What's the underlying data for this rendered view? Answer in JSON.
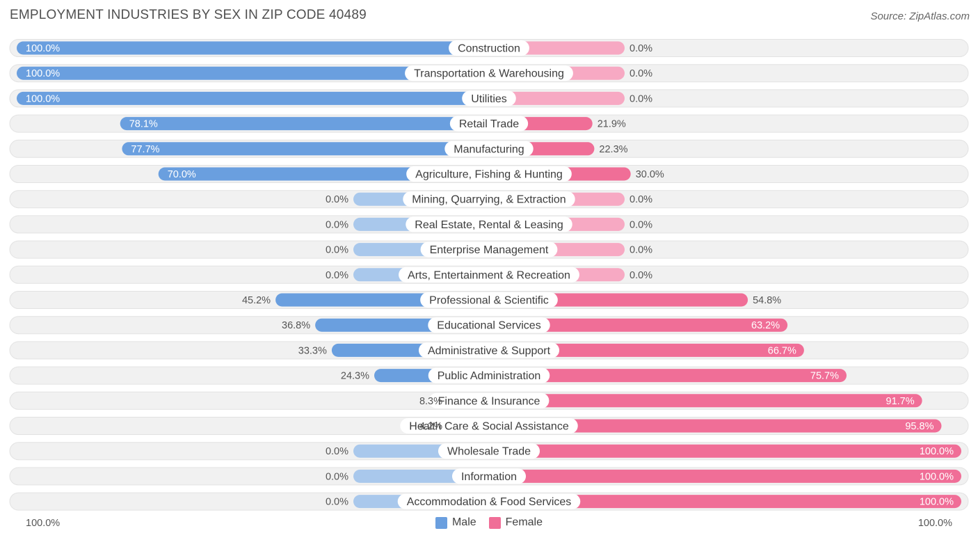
{
  "title": "EMPLOYMENT INDUSTRIES BY SEX IN ZIP CODE 40489",
  "source": "Source: ZipAtlas.com",
  "colors": {
    "male": "#6a9fdf",
    "male_light": "#a9c8ec",
    "female": "#f06e97",
    "female_light": "#f7a9c3",
    "track": "#f1f1f1"
  },
  "chart_data": {
    "type": "bar",
    "orientation": "horizontal-diverging",
    "title": "EMPLOYMENT INDUSTRIES BY SEX IN ZIP CODE 40489",
    "axis": {
      "left_label": "100.0%",
      "right_label": "100.0%",
      "xlim": [
        -100,
        100
      ]
    },
    "legend": [
      {
        "name": "Male",
        "color": "#6a9fdf"
      },
      {
        "name": "Female",
        "color": "#f06e97"
      }
    ],
    "legend_position": "bottom",
    "categories": [
      "Construction",
      "Transportation & Warehousing",
      "Utilities",
      "Retail Trade",
      "Manufacturing",
      "Agriculture, Fishing & Hunting",
      "Mining, Quarrying, & Extraction",
      "Real Estate, Rental & Leasing",
      "Enterprise Management",
      "Arts, Entertainment & Recreation",
      "Professional & Scientific",
      "Educational Services",
      "Administrative & Support",
      "Public Administration",
      "Finance & Insurance",
      "Health Care & Social Assistance",
      "Wholesale Trade",
      "Information",
      "Accommodation & Food Services"
    ],
    "series": [
      {
        "name": "Male",
        "values": [
          100.0,
          100.0,
          100.0,
          78.1,
          77.7,
          70.0,
          0.0,
          0.0,
          0.0,
          0.0,
          45.2,
          36.8,
          33.3,
          24.3,
          8.3,
          4.2,
          0.0,
          0.0,
          0.0
        ],
        "labels": [
          "100.0%",
          "100.0%",
          "100.0%",
          "78.1%",
          "77.7%",
          "70.0%",
          "0.0%",
          "0.0%",
          "0.0%",
          "0.0%",
          "45.2%",
          "36.8%",
          "33.3%",
          "24.3%",
          "8.3%",
          "4.2%",
          "0.0%",
          "0.0%",
          "0.0%"
        ]
      },
      {
        "name": "Female",
        "values": [
          0.0,
          0.0,
          0.0,
          21.9,
          22.3,
          30.0,
          0.0,
          0.0,
          0.0,
          0.0,
          54.8,
          63.2,
          66.7,
          75.7,
          91.7,
          95.8,
          100.0,
          100.0,
          100.0
        ],
        "labels": [
          "0.0%",
          "0.0%",
          "0.0%",
          "21.9%",
          "22.3%",
          "30.0%",
          "0.0%",
          "0.0%",
          "0.0%",
          "0.0%",
          "54.8%",
          "63.2%",
          "66.7%",
          "75.7%",
          "91.7%",
          "95.8%",
          "100.0%",
          "100.0%",
          "100.0%"
        ]
      }
    ]
  }
}
